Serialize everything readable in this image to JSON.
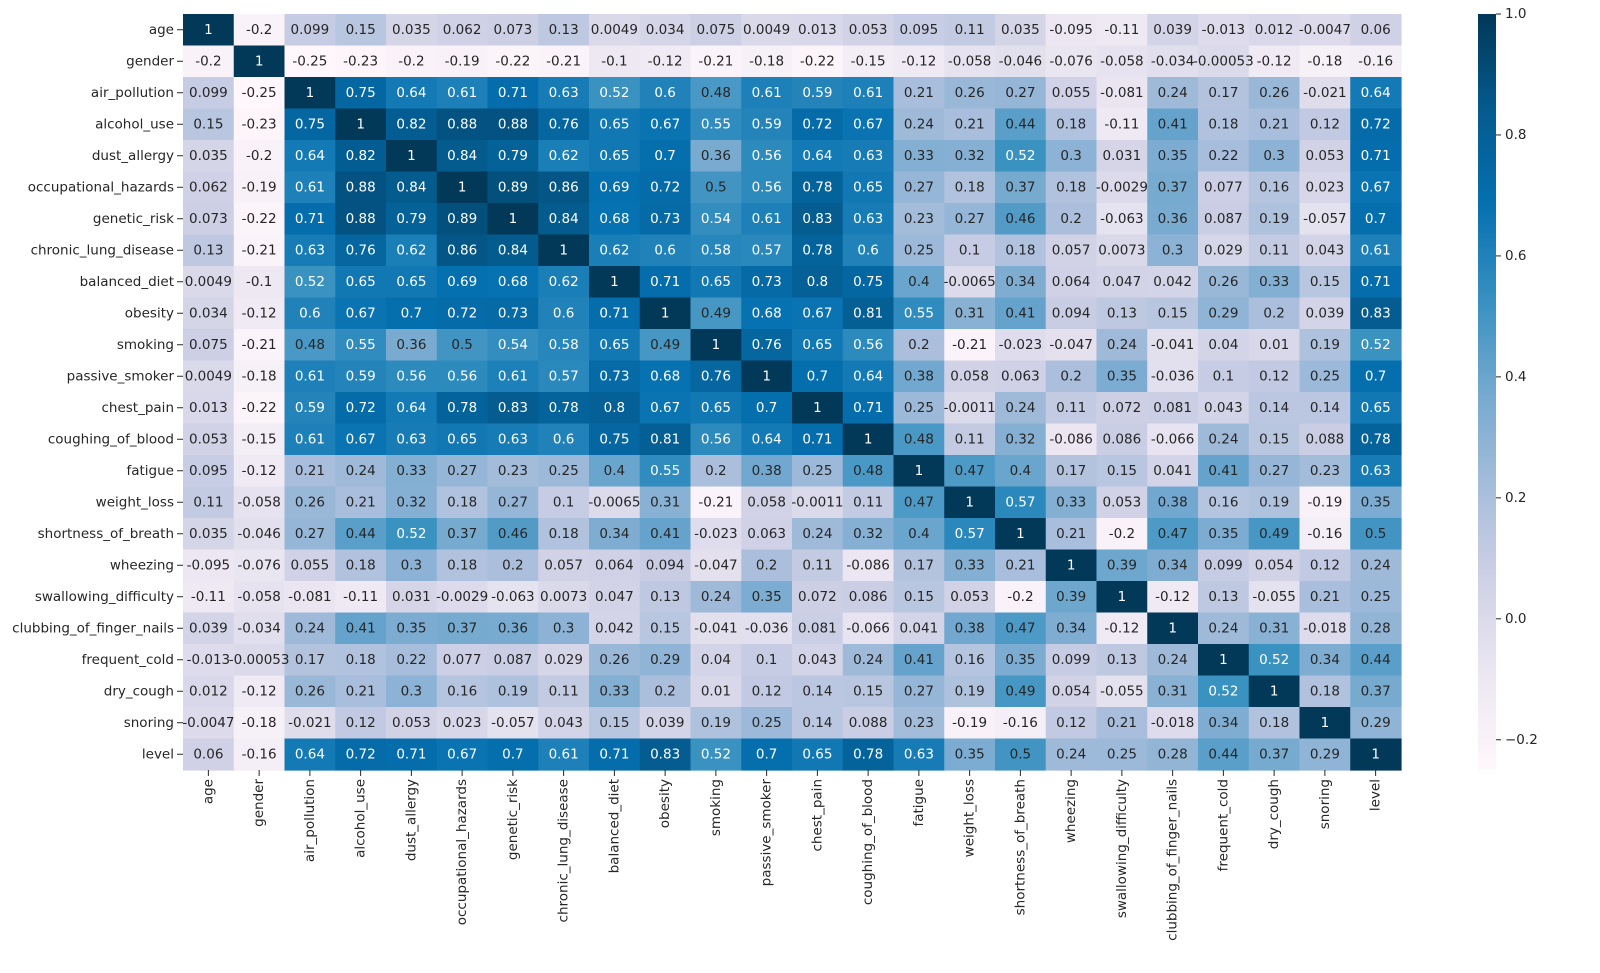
{
  "chart_data": {
    "type": "heatmap",
    "title": "",
    "xlabel": "",
    "ylabel": "",
    "colormap": "PuBu",
    "vmin": -0.25,
    "vmax": 1.0,
    "color_stops": [
      "#fff7fb",
      "#ece7f2",
      "#d0d1e6",
      "#a6bddb",
      "#74a9cf",
      "#3690c0",
      "#0570b0",
      "#045a8d",
      "#023858"
    ],
    "labels": [
      "age",
      "gender",
      "air_pollution",
      "alcohol_use",
      "dust_allergy",
      "occupational_hazards",
      "genetic_risk",
      "chronic_lung_disease",
      "balanced_diet",
      "obesity",
      "smoking",
      "passive_smoker",
      "chest_pain",
      "coughing_of_blood",
      "fatigue",
      "weight_loss",
      "shortness_of_breath",
      "wheezing",
      "swallowing_difficulty",
      "clubbing_of_finger_nails",
      "frequent_cold",
      "dry_cough",
      "snoring",
      "level"
    ],
    "annotations": [
      [
        "1",
        "-0.2",
        "0.099",
        "0.15",
        "0.035",
        "0.062",
        "0.073",
        "0.13",
        "0.0049",
        "0.034",
        "0.075",
        "0.0049",
        "0.013",
        "0.053",
        "0.095",
        "0.11",
        "0.035",
        "-0.095",
        "-0.11",
        "0.039",
        "-0.013",
        "0.012",
        "-0.0047",
        "0.06"
      ],
      [
        "-0.2",
        "1",
        "-0.25",
        "-0.23",
        "-0.2",
        "-0.19",
        "-0.22",
        "-0.21",
        "-0.1",
        "-0.12",
        "-0.21",
        "-0.18",
        "-0.22",
        "-0.15",
        "-0.12",
        "-0.058",
        "-0.046",
        "-0.076",
        "-0.058",
        "-0.034",
        "-0.00053",
        "-0.12",
        "-0.18",
        "-0.16"
      ],
      [
        "0.099",
        "-0.25",
        "1",
        "0.75",
        "0.64",
        "0.61",
        "0.71",
        "0.63",
        "0.52",
        "0.6",
        "0.48",
        "0.61",
        "0.59",
        "0.61",
        "0.21",
        "0.26",
        "0.27",
        "0.055",
        "-0.081",
        "0.24",
        "0.17",
        "0.26",
        "-0.021",
        "0.64"
      ],
      [
        "0.15",
        "-0.23",
        "0.75",
        "1",
        "0.82",
        "0.88",
        "0.88",
        "0.76",
        "0.65",
        "0.67",
        "0.55",
        "0.59",
        "0.72",
        "0.67",
        "0.24",
        "0.21",
        "0.44",
        "0.18",
        "-0.11",
        "0.41",
        "0.18",
        "0.21",
        "0.12",
        "0.72"
      ],
      [
        "0.035",
        "-0.2",
        "0.64",
        "0.82",
        "1",
        "0.84",
        "0.79",
        "0.62",
        "0.65",
        "0.7",
        "0.36",
        "0.56",
        "0.64",
        "0.63",
        "0.33",
        "0.32",
        "0.52",
        "0.3",
        "0.031",
        "0.35",
        "0.22",
        "0.3",
        "0.053",
        "0.71"
      ],
      [
        "0.062",
        "-0.19",
        "0.61",
        "0.88",
        "0.84",
        "1",
        "0.89",
        "0.86",
        "0.69",
        "0.72",
        "0.5",
        "0.56",
        "0.78",
        "0.65",
        "0.27",
        "0.18",
        "0.37",
        "0.18",
        "-0.0029",
        "0.37",
        "0.077",
        "0.16",
        "0.023",
        "0.67"
      ],
      [
        "0.073",
        "-0.22",
        "0.71",
        "0.88",
        "0.79",
        "0.89",
        "1",
        "0.84",
        "0.68",
        "0.73",
        "0.54",
        "0.61",
        "0.83",
        "0.63",
        "0.23",
        "0.27",
        "0.46",
        "0.2",
        "-0.063",
        "0.36",
        "0.087",
        "0.19",
        "-0.057",
        "0.7"
      ],
      [
        "0.13",
        "-0.21",
        "0.63",
        "0.76",
        "0.62",
        "0.86",
        "0.84",
        "1",
        "0.62",
        "0.6",
        "0.58",
        "0.57",
        "0.78",
        "0.6",
        "0.25",
        "0.1",
        "0.18",
        "0.057",
        "0.0073",
        "0.3",
        "0.029",
        "0.11",
        "0.043",
        "0.61"
      ],
      [
        "0.0049",
        "-0.1",
        "0.52",
        "0.65",
        "0.65",
        "0.69",
        "0.68",
        "0.62",
        "1",
        "0.71",
        "0.65",
        "0.73",
        "0.8",
        "0.75",
        "0.4",
        "-0.0065",
        "0.34",
        "0.064",
        "0.047",
        "0.042",
        "0.26",
        "0.33",
        "0.15",
        "0.71"
      ],
      [
        "0.034",
        "-0.12",
        "0.6",
        "0.67",
        "0.7",
        "0.72",
        "0.73",
        "0.6",
        "0.71",
        "1",
        "0.49",
        "0.68",
        "0.67",
        "0.81",
        "0.55",
        "0.31",
        "0.41",
        "0.094",
        "0.13",
        "0.15",
        "0.29",
        "0.2",
        "0.039",
        "0.83"
      ],
      [
        "0.075",
        "-0.21",
        "0.48",
        "0.55",
        "0.36",
        "0.5",
        "0.54",
        "0.58",
        "0.65",
        "0.49",
        "1",
        "0.76",
        "0.65",
        "0.56",
        "0.2",
        "-0.21",
        "-0.023",
        "-0.047",
        "0.24",
        "-0.041",
        "0.04",
        "0.01",
        "0.19",
        "0.52"
      ],
      [
        "0.0049",
        "-0.18",
        "0.61",
        "0.59",
        "0.56",
        "0.56",
        "0.61",
        "0.57",
        "0.73",
        "0.68",
        "0.76",
        "1",
        "0.7",
        "0.64",
        "0.38",
        "0.058",
        "0.063",
        "0.2",
        "0.35",
        "-0.036",
        "0.1",
        "0.12",
        "0.25",
        "0.7"
      ],
      [
        "0.013",
        "-0.22",
        "0.59",
        "0.72",
        "0.64",
        "0.78",
        "0.83",
        "0.78",
        "0.8",
        "0.67",
        "0.65",
        "0.7",
        "1",
        "0.71",
        "0.25",
        "-0.0011",
        "0.24",
        "0.11",
        "0.072",
        "0.081",
        "0.043",
        "0.14",
        "0.14",
        "0.65"
      ],
      [
        "0.053",
        "-0.15",
        "0.61",
        "0.67",
        "0.63",
        "0.65",
        "0.63",
        "0.6",
        "0.75",
        "0.81",
        "0.56",
        "0.64",
        "0.71",
        "1",
        "0.48",
        "0.11",
        "0.32",
        "-0.086",
        "0.086",
        "-0.066",
        "0.24",
        "0.15",
        "0.088",
        "0.78"
      ],
      [
        "0.095",
        "-0.12",
        "0.21",
        "0.24",
        "0.33",
        "0.27",
        "0.23",
        "0.25",
        "0.4",
        "0.55",
        "0.2",
        "0.38",
        "0.25",
        "0.48",
        "1",
        "0.47",
        "0.4",
        "0.17",
        "0.15",
        "0.041",
        "0.41",
        "0.27",
        "0.23",
        "0.63"
      ],
      [
        "0.11",
        "-0.058",
        "0.26",
        "0.21",
        "0.32",
        "0.18",
        "0.27",
        "0.1",
        "-0.0065",
        "0.31",
        "-0.21",
        "0.058",
        "-0.0011",
        "0.11",
        "0.47",
        "1",
        "0.57",
        "0.33",
        "0.053",
        "0.38",
        "0.16",
        "0.19",
        "-0.19",
        "0.35"
      ],
      [
        "0.035",
        "-0.046",
        "0.27",
        "0.44",
        "0.52",
        "0.37",
        "0.46",
        "0.18",
        "0.34",
        "0.41",
        "-0.023",
        "0.063",
        "0.24",
        "0.32",
        "0.4",
        "0.57",
        "1",
        "0.21",
        "-0.2",
        "0.47",
        "0.35",
        "0.49",
        "-0.16",
        "0.5"
      ],
      [
        "-0.095",
        "-0.076",
        "0.055",
        "0.18",
        "0.3",
        "0.18",
        "0.2",
        "0.057",
        "0.064",
        "0.094",
        "-0.047",
        "0.2",
        "0.11",
        "-0.086",
        "0.17",
        "0.33",
        "0.21",
        "1",
        "0.39",
        "0.34",
        "0.099",
        "0.054",
        "0.12",
        "0.24"
      ],
      [
        "-0.11",
        "-0.058",
        "-0.081",
        "-0.11",
        "0.031",
        "-0.0029",
        "-0.063",
        "0.0073",
        "0.047",
        "0.13",
        "0.24",
        "0.35",
        "0.072",
        "0.086",
        "0.15",
        "0.053",
        "-0.2",
        "0.39",
        "1",
        "-0.12",
        "0.13",
        "-0.055",
        "0.21",
        "0.25"
      ],
      [
        "0.039",
        "-0.034",
        "0.24",
        "0.41",
        "0.35",
        "0.37",
        "0.36",
        "0.3",
        "0.042",
        "0.15",
        "-0.041",
        "-0.036",
        "0.081",
        "-0.066",
        "0.041",
        "0.38",
        "0.47",
        "0.34",
        "-0.12",
        "1",
        "0.24",
        "0.31",
        "-0.018",
        "0.28"
      ],
      [
        "-0.013",
        "-0.00053",
        "0.17",
        "0.18",
        "0.22",
        "0.077",
        "0.087",
        "0.029",
        "0.26",
        "0.29",
        "0.04",
        "0.1",
        "0.043",
        "0.24",
        "0.41",
        "0.16",
        "0.35",
        "0.099",
        "0.13",
        "0.24",
        "1",
        "0.52",
        "0.34",
        "0.44"
      ],
      [
        "0.012",
        "-0.12",
        "0.26",
        "0.21",
        "0.3",
        "0.16",
        "0.19",
        "0.11",
        "0.33",
        "0.2",
        "0.01",
        "0.12",
        "0.14",
        "0.15",
        "0.27",
        "0.19",
        "0.49",
        "0.054",
        "-0.055",
        "0.31",
        "0.52",
        "1",
        "0.18",
        "0.37"
      ],
      [
        "-0.0047",
        "-0.18",
        "-0.021",
        "0.12",
        "0.053",
        "0.023",
        "-0.057",
        "0.043",
        "0.15",
        "0.039",
        "0.19",
        "0.25",
        "0.14",
        "0.088",
        "0.23",
        "-0.19",
        "-0.16",
        "0.12",
        "0.21",
        "-0.018",
        "0.34",
        "0.18",
        "1",
        "0.29"
      ],
      [
        "0.06",
        "-0.16",
        "0.64",
        "0.72",
        "0.71",
        "0.67",
        "0.7",
        "0.61",
        "0.71",
        "0.83",
        "0.52",
        "0.7",
        "0.65",
        "0.78",
        "0.63",
        "0.35",
        "0.5",
        "0.24",
        "0.25",
        "0.28",
        "0.44",
        "0.37",
        "0.29",
        "1"
      ]
    ],
    "colorbar": {
      "ticks": [
        1.0,
        0.8,
        0.6,
        0.4,
        0.2,
        0.0,
        -0.2
      ],
      "tick_labels": [
        "1.0",
        "0.8",
        "0.6",
        "0.4",
        "0.2",
        "0.0",
        "−0.2"
      ]
    },
    "grid": false,
    "legend": "colorbar-right"
  }
}
